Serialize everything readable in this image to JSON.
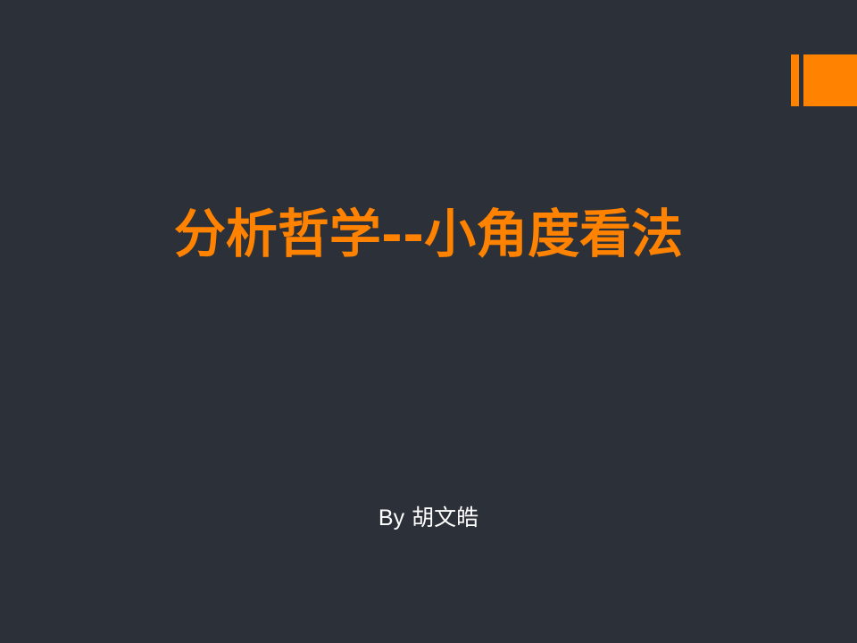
{
  "slide": {
    "title": "分析哲学--小角度看法",
    "subtitle_prefix": "By",
    "author": "胡文皓"
  },
  "colors": {
    "background": "#2b3039",
    "accent": "#ff8200",
    "subtitle_text": "#ffffff"
  }
}
